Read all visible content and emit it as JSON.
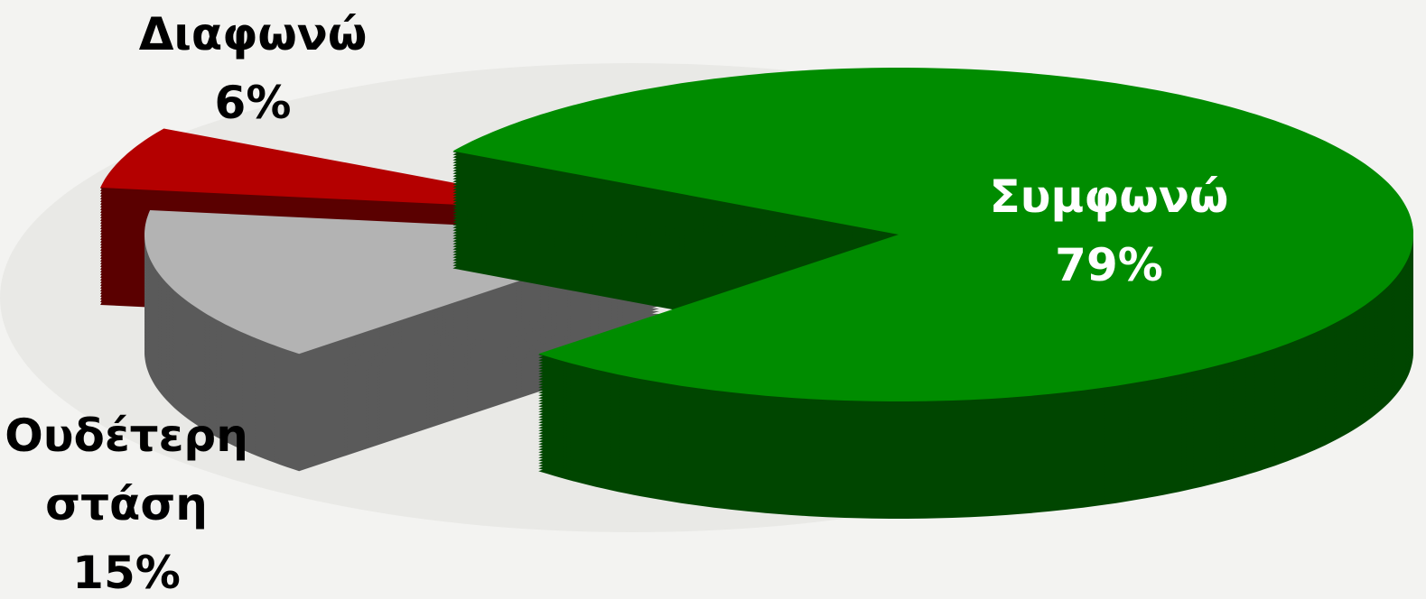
{
  "chart_data": {
    "type": "pie",
    "categories": [
      "Συμφωνώ",
      "Ουδέτερη στάση",
      "Διαφωνώ"
    ],
    "values": [
      79,
      15,
      6
    ],
    "value_labels": [
      "79%",
      "15%",
      "6%"
    ],
    "colors": [
      "#008c00",
      "#b3b3b3",
      "#b40000"
    ]
  }
}
